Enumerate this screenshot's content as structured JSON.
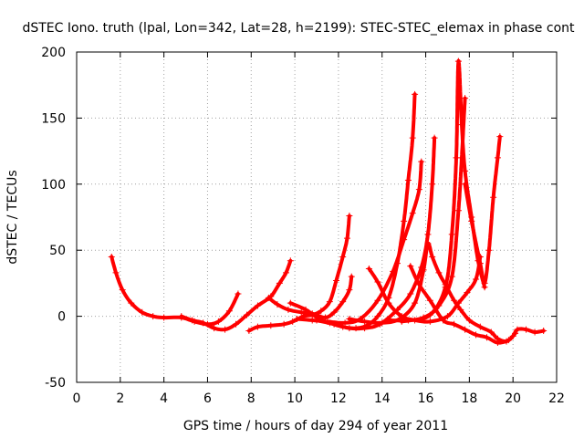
{
  "chart_data": {
    "type": "scatter",
    "title": "dSTEC Iono. truth (lpal, Lon=342, Lat=28, h=2199): STEC-STEC_elemax in phase cont",
    "xlabel": "GPS time / hours of day 294 of year 2011",
    "ylabel": "dSTEC  / TECUs",
    "xlim": [
      0,
      22
    ],
    "ylim": [
      -50,
      200
    ],
    "xticks": [
      0,
      2,
      4,
      6,
      8,
      10,
      12,
      14,
      16,
      18,
      20,
      22
    ],
    "yticks": [
      -50,
      0,
      50,
      100,
      150,
      200
    ],
    "grid": true,
    "marker": "+",
    "color": "#ff0000",
    "series": [
      {
        "points": [
          [
            1.6,
            45
          ],
          [
            1.8,
            33
          ],
          [
            2.1,
            20
          ],
          [
            2.5,
            10
          ],
          [
            3.0,
            3
          ],
          [
            3.5,
            0
          ],
          [
            4.0,
            -1
          ],
          [
            4.8,
            -1
          ],
          [
            5.4,
            -4
          ],
          [
            6.0,
            -6
          ],
          [
            6.5,
            -4
          ],
          [
            7.0,
            4
          ],
          [
            7.4,
            17
          ]
        ]
      },
      {
        "points": [
          [
            4.8,
            0
          ],
          [
            5.3,
            -3
          ],
          [
            5.8,
            -5
          ],
          [
            6.3,
            -9
          ],
          [
            6.8,
            -10
          ],
          [
            7.3,
            -6
          ],
          [
            7.8,
            1
          ],
          [
            8.3,
            8
          ],
          [
            8.9,
            15
          ],
          [
            9.3,
            25
          ],
          [
            9.6,
            33
          ],
          [
            9.8,
            42
          ]
        ]
      },
      {
        "points": [
          [
            7.9,
            -11
          ],
          [
            8.3,
            -8
          ],
          [
            8.9,
            -7
          ],
          [
            9.5,
            -6
          ],
          [
            9.9,
            -4
          ],
          [
            10.4,
            0
          ],
          [
            10.8,
            1
          ],
          [
            11.2,
            4
          ],
          [
            11.6,
            11
          ],
          [
            11.9,
            27
          ],
          [
            12.2,
            45
          ],
          [
            12.4,
            59
          ],
          [
            12.5,
            76
          ]
        ]
      },
      {
        "points": [
          [
            8.8,
            14
          ],
          [
            9.2,
            9
          ],
          [
            9.7,
            5
          ],
          [
            10.3,
            3
          ],
          [
            10.8,
            2
          ],
          [
            11.4,
            -1
          ],
          [
            11.8,
            3
          ],
          [
            12.2,
            11
          ],
          [
            12.5,
            20
          ],
          [
            12.6,
            30
          ]
        ]
      },
      {
        "points": [
          [
            9.8,
            10
          ],
          [
            10.5,
            5
          ],
          [
            11.1,
            -2
          ],
          [
            11.6,
            -5
          ],
          [
            12.2,
            -8
          ],
          [
            12.8,
            -9
          ],
          [
            13.3,
            -7
          ],
          [
            13.8,
            0
          ],
          [
            14.3,
            14
          ],
          [
            14.7,
            40
          ],
          [
            15.0,
            72
          ],
          [
            15.2,
            103
          ],
          [
            15.4,
            135
          ],
          [
            15.5,
            168
          ]
        ]
      },
      {
        "points": [
          [
            10.1,
            -2
          ],
          [
            10.8,
            -3
          ],
          [
            11.5,
            -4
          ],
          [
            12.3,
            -5
          ],
          [
            13.0,
            -2
          ],
          [
            13.8,
            12
          ],
          [
            14.5,
            34
          ],
          [
            15.0,
            58
          ],
          [
            15.4,
            78
          ],
          [
            15.7,
            96
          ],
          [
            15.8,
            117
          ]
        ]
      },
      {
        "points": [
          [
            11.0,
            -3
          ],
          [
            11.8,
            -6
          ],
          [
            12.5,
            -9
          ],
          [
            13.2,
            -9
          ],
          [
            13.9,
            -6
          ],
          [
            14.7,
            5
          ],
          [
            15.3,
            17
          ],
          [
            15.8,
            37
          ],
          [
            16.1,
            62
          ],
          [
            16.3,
            100
          ],
          [
            16.4,
            135
          ]
        ]
      },
      {
        "points": [
          [
            13.4,
            36
          ],
          [
            13.8,
            26
          ],
          [
            14.3,
            10
          ],
          [
            14.9,
            0
          ],
          [
            15.5,
            -3
          ],
          [
            16.2,
            -4
          ],
          [
            17.0,
            0
          ],
          [
            17.5,
            10
          ],
          [
            17.9,
            18
          ],
          [
            18.3,
            28
          ],
          [
            18.5,
            45
          ]
        ]
      },
      {
        "points": [
          [
            12.5,
            -2
          ],
          [
            13.2,
            -4
          ],
          [
            14.0,
            -5
          ],
          [
            14.8,
            -2
          ],
          [
            15.5,
            10
          ],
          [
            15.9,
            35
          ],
          [
            16.1,
            55
          ],
          [
            16.3,
            45
          ],
          [
            16.6,
            33
          ],
          [
            16.9,
            24
          ],
          [
            17.3,
            12
          ],
          [
            17.6,
            5
          ],
          [
            18.0,
            -3
          ],
          [
            18.5,
            -8
          ],
          [
            19.0,
            -12
          ],
          [
            19.3,
            -17
          ],
          [
            19.7,
            -19
          ],
          [
            20.0,
            -15
          ],
          [
            20.2,
            -10
          ],
          [
            20.6,
            -10
          ],
          [
            21.0,
            -12
          ],
          [
            21.4,
            -11
          ]
        ]
      },
      {
        "points": [
          [
            15.3,
            38
          ],
          [
            15.7,
            24
          ],
          [
            16.2,
            12
          ],
          [
            16.8,
            -3
          ],
          [
            17.3,
            -6
          ],
          [
            17.8,
            -10
          ],
          [
            18.3,
            -14
          ],
          [
            18.8,
            -16
          ],
          [
            19.3,
            -20
          ],
          [
            19.8,
            -18
          ],
          [
            20.1,
            -13
          ]
        ]
      },
      {
        "points": [
          [
            14.3,
            -3
          ],
          [
            15.2,
            -3
          ],
          [
            16.2,
            1
          ],
          [
            16.9,
            22
          ],
          [
            17.2,
            62
          ],
          [
            17.4,
            120
          ],
          [
            17.5,
            193
          ],
          [
            17.65,
            145
          ],
          [
            17.8,
            110
          ],
          [
            18.1,
            75
          ],
          [
            18.4,
            42
          ],
          [
            18.7,
            22
          ]
        ]
      },
      {
        "points": [
          [
            14.9,
            -4
          ],
          [
            15.9,
            -1
          ],
          [
            16.6,
            8
          ],
          [
            17.2,
            30
          ],
          [
            17.5,
            80
          ],
          [
            17.65,
            120
          ],
          [
            17.8,
            165
          ]
        ]
      },
      {
        "points": [
          [
            17.8,
            100
          ],
          [
            18.1,
            72
          ],
          [
            18.5,
            40
          ],
          [
            18.7,
            25
          ],
          [
            18.9,
            50
          ],
          [
            19.1,
            90
          ],
          [
            19.3,
            120
          ],
          [
            19.4,
            136
          ]
        ]
      }
    ]
  }
}
